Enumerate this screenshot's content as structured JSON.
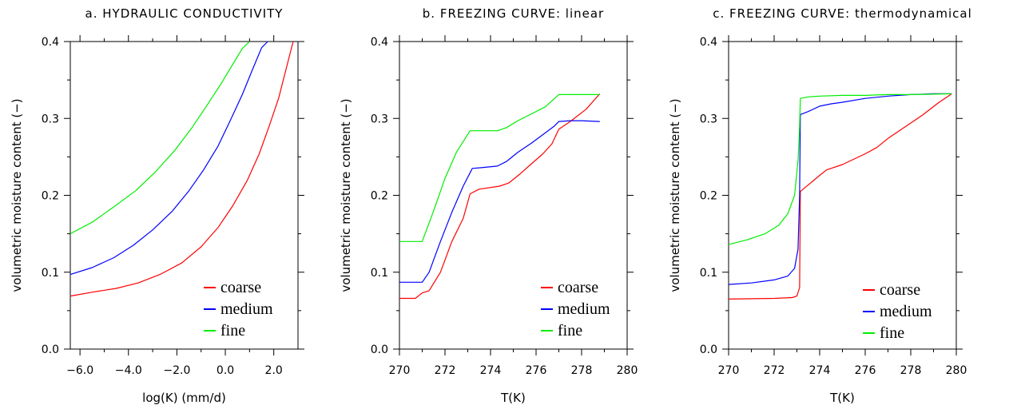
{
  "chart_data": [
    {
      "type": "line",
      "title": "a. HYDRAULIC CONDUCTIVITY",
      "xlabel": "log(K) (mm/d)",
      "ylabel": "volumetric moisture content (−)",
      "xlim": [
        -6.4,
        3.0
      ],
      "ylim": [
        0.0,
        0.4
      ],
      "xticks": [
        -6,
        -4,
        -2,
        0,
        2
      ],
      "xtick_labels": [
        "−6.0",
        "−4.0",
        "−2.0",
        "0.0",
        "2.0"
      ],
      "yticks": [
        0,
        0.1,
        0.2,
        0.3,
        0.4
      ],
      "ytick_labels": [
        "0.0",
        "0.1",
        "0.2",
        "0.3",
        "0.4"
      ],
      "legend_position": "bottom-right",
      "series": [
        {
          "name": "coarse",
          "color": "#ff0000",
          "x": [
            -6.4,
            -5.5,
            -4.5,
            -3.6,
            -2.7,
            -1.8,
            -1.0,
            -0.3,
            0.3,
            0.9,
            1.4,
            1.8,
            2.2,
            2.5,
            2.8
          ],
          "y": [
            0.069,
            0.074,
            0.079,
            0.086,
            0.097,
            0.112,
            0.133,
            0.158,
            0.186,
            0.219,
            0.254,
            0.289,
            0.326,
            0.363,
            0.4
          ]
        },
        {
          "name": "medium",
          "color": "#0000ff",
          "x": [
            -6.4,
            -5.5,
            -4.6,
            -3.8,
            -3.0,
            -2.2,
            -1.5,
            -0.9,
            -0.3,
            0.2,
            0.7,
            1.1,
            1.5,
            1.75
          ],
          "y": [
            0.097,
            0.106,
            0.119,
            0.135,
            0.155,
            0.179,
            0.206,
            0.233,
            0.264,
            0.297,
            0.331,
            0.362,
            0.392,
            0.4
          ]
        },
        {
          "name": "fine",
          "color": "#00ee00",
          "x": [
            -6.4,
            -5.5,
            -4.6,
            -3.7,
            -2.9,
            -2.1,
            -1.4,
            -0.8,
            -0.2,
            0.3,
            0.7,
            1.0
          ],
          "y": [
            0.15,
            0.165,
            0.185,
            0.206,
            0.23,
            0.258,
            0.287,
            0.315,
            0.344,
            0.37,
            0.391,
            0.4
          ]
        }
      ]
    },
    {
      "type": "line",
      "title": "b. FREEZING CURVE: linear",
      "xlabel": "T(K)",
      "ylabel": "volumetric moisture content (−)",
      "xlim": [
        270,
        280
      ],
      "ylim": [
        0.0,
        0.4
      ],
      "xticks": [
        270,
        272,
        274,
        276,
        278,
        280
      ],
      "xtick_labels": [
        "270",
        "272",
        "274",
        "276",
        "278",
        "280"
      ],
      "yticks": [
        0,
        0.1,
        0.2,
        0.3,
        0.4
      ],
      "ytick_labels": [
        "0.0",
        "0.1",
        "0.2",
        "0.3",
        "0.4"
      ],
      "legend_position": "bottom-right",
      "series": [
        {
          "name": "coarse",
          "color": "#ff0000",
          "x": [
            270,
            270.7,
            271,
            271.3,
            271.8,
            272.3,
            272.8,
            273.1,
            273.5,
            274.4,
            274.8,
            275.3,
            275.8,
            276.3,
            276.7,
            277,
            277.5,
            278.2,
            278.8
          ],
          "y": [
            0.066,
            0.066,
            0.073,
            0.076,
            0.1,
            0.14,
            0.17,
            0.202,
            0.208,
            0.212,
            0.216,
            0.228,
            0.241,
            0.254,
            0.267,
            0.286,
            0.296,
            0.312,
            0.332
          ]
        },
        {
          "name": "medium",
          "color": "#0000ff",
          "x": [
            270,
            271,
            271.3,
            271.8,
            272.3,
            272.8,
            273.2,
            273.6,
            274.3,
            274.7,
            275.2,
            275.8,
            276.3,
            276.8,
            277,
            277.5,
            278,
            278.8
          ],
          "y": [
            0.087,
            0.087,
            0.1,
            0.14,
            0.178,
            0.212,
            0.235,
            0.236,
            0.238,
            0.244,
            0.256,
            0.268,
            0.279,
            0.29,
            0.296,
            0.297,
            0.297,
            0.296
          ]
        },
        {
          "name": "fine",
          "color": "#00ee00",
          "x": [
            270,
            271,
            271.5,
            272,
            272.5,
            273.1,
            273.5,
            274.3,
            274.7,
            275.2,
            275.8,
            276.4,
            277,
            278.8
          ],
          "y": [
            0.14,
            0.14,
            0.18,
            0.222,
            0.256,
            0.284,
            0.284,
            0.284,
            0.288,
            0.297,
            0.306,
            0.315,
            0.331,
            0.331
          ]
        }
      ]
    },
    {
      "type": "line",
      "title": "c. FREEZING CURVE: thermodynamical",
      "xlabel": "T(K)",
      "ylabel": "volumetric moisture content (−)",
      "xlim": [
        270,
        280
      ],
      "ylim": [
        0.0,
        0.4
      ],
      "xticks": [
        270,
        272,
        274,
        276,
        278,
        280
      ],
      "xtick_labels": [
        "270",
        "272",
        "274",
        "276",
        "278",
        "280"
      ],
      "yticks": [
        0,
        0.1,
        0.2,
        0.3,
        0.4
      ],
      "ytick_labels": [
        "0.0",
        "0.1",
        "0.2",
        "0.3",
        "0.4"
      ],
      "legend_position": "bottom-right",
      "series": [
        {
          "name": "coarse",
          "color": "#ff0000",
          "x": [
            270,
            272,
            272.8,
            273.0,
            273.12,
            273.15,
            273.6,
            274,
            274.3,
            275,
            276,
            276.5,
            277,
            278,
            278.5,
            279.2,
            279.8
          ],
          "y": [
            0.065,
            0.066,
            0.067,
            0.069,
            0.08,
            0.205,
            0.216,
            0.226,
            0.233,
            0.24,
            0.254,
            0.262,
            0.274,
            0.294,
            0.304,
            0.32,
            0.332
          ]
        },
        {
          "name": "medium",
          "color": "#0000ff",
          "x": [
            270,
            271,
            272,
            272.6,
            272.9,
            273.05,
            273.12,
            273.15,
            273.5,
            274,
            274.5,
            275,
            276,
            277,
            278,
            279,
            279.8
          ],
          "y": [
            0.084,
            0.086,
            0.09,
            0.095,
            0.105,
            0.13,
            0.2,
            0.305,
            0.309,
            0.316,
            0.319,
            0.321,
            0.326,
            0.329,
            0.331,
            0.332,
            0.332
          ]
        },
        {
          "name": "fine",
          "color": "#00ee00",
          "x": [
            270,
            270.8,
            271.6,
            272.2,
            272.6,
            272.9,
            273.05,
            273.12,
            273.15,
            273.5,
            274,
            275,
            276,
            277,
            278,
            279.8
          ],
          "y": [
            0.136,
            0.142,
            0.15,
            0.161,
            0.176,
            0.2,
            0.245,
            0.29,
            0.326,
            0.328,
            0.329,
            0.33,
            0.33,
            0.331,
            0.331,
            0.332
          ]
        }
      ]
    }
  ]
}
